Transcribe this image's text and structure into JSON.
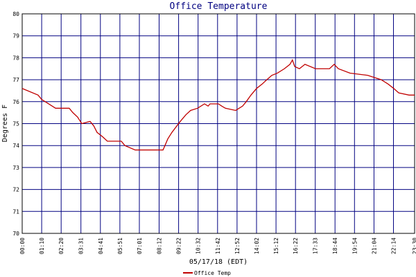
{
  "chart_data": {
    "type": "line",
    "title": "Office Temperature",
    "x_label": "05/17/18 (EDT)",
    "y_label": "Degrees F",
    "x": [
      0,
      57,
      70,
      95,
      120,
      169,
      182,
      199,
      214,
      244,
      257,
      269,
      289,
      306,
      356,
      369,
      406,
      506,
      513,
      523,
      538,
      556,
      568,
      588,
      605,
      630,
      655,
      668,
      675,
      705,
      717,
      730,
      767,
      792,
      805,
      822,
      842,
      862,
      879,
      897,
      917,
      942,
      962,
      971,
      979,
      996,
      1016,
      1054,
      1104,
      1121,
      1136,
      1178,
      1241,
      1290,
      1315,
      1335,
      1353,
      1390,
      1410
    ],
    "series": [
      {
        "name": "Office Temp",
        "color": "#c00000",
        "values": [
          76.6,
          76.3,
          76.1,
          75.9,
          75.7,
          75.7,
          75.5,
          75.3,
          75.0,
          75.1,
          74.9,
          74.6,
          74.4,
          74.2,
          74.2,
          74.0,
          73.8,
          73.8,
          74.0,
          74.3,
          74.6,
          74.9,
          75.1,
          75.4,
          75.6,
          75.7,
          75.9,
          75.8,
          75.9,
          75.9,
          75.8,
          75.7,
          75.6,
          75.8,
          76.0,
          76.3,
          76.6,
          76.8,
          77.0,
          77.2,
          77.3,
          77.5,
          77.7,
          77.9,
          77.6,
          77.5,
          77.7,
          77.5,
          77.5,
          77.7,
          77.5,
          77.3,
          77.2,
          77.0,
          76.8,
          76.6,
          76.4,
          76.3,
          76.3
        ]
      }
    ],
    "xlim": [
      0,
      1410
    ],
    "ylim": [
      70,
      80
    ],
    "yticks": [
      70,
      71,
      72,
      73,
      74,
      75,
      76,
      77,
      78,
      79,
      80
    ],
    "xticks": [
      {
        "value": 0,
        "label": "00:00"
      },
      {
        "value": 70,
        "label": "01:10"
      },
      {
        "value": 140,
        "label": "02:20"
      },
      {
        "value": 211,
        "label": "03:31"
      },
      {
        "value": 281,
        "label": "04:41"
      },
      {
        "value": 351,
        "label": "05:51"
      },
      {
        "value": 421,
        "label": "07:01"
      },
      {
        "value": 492,
        "label": "08:12"
      },
      {
        "value": 562,
        "label": "09:22"
      },
      {
        "value": 632,
        "label": "10:32"
      },
      {
        "value": 702,
        "label": "11:42"
      },
      {
        "value": 772,
        "label": "12:52"
      },
      {
        "value": 842,
        "label": "14:02"
      },
      {
        "value": 912,
        "label": "15:12"
      },
      {
        "value": 982,
        "label": "16:22"
      },
      {
        "value": 1053,
        "label": "17:33"
      },
      {
        "value": 1124,
        "label": "18:44"
      },
      {
        "value": 1194,
        "label": "19:54"
      },
      {
        "value": 1264,
        "label": "21:04"
      },
      {
        "value": 1334,
        "label": "22:14"
      },
      {
        "value": 1410,
        "label": "23:30"
      }
    ],
    "grid": true,
    "grid_color": "#000080",
    "legend": "bottom"
  }
}
